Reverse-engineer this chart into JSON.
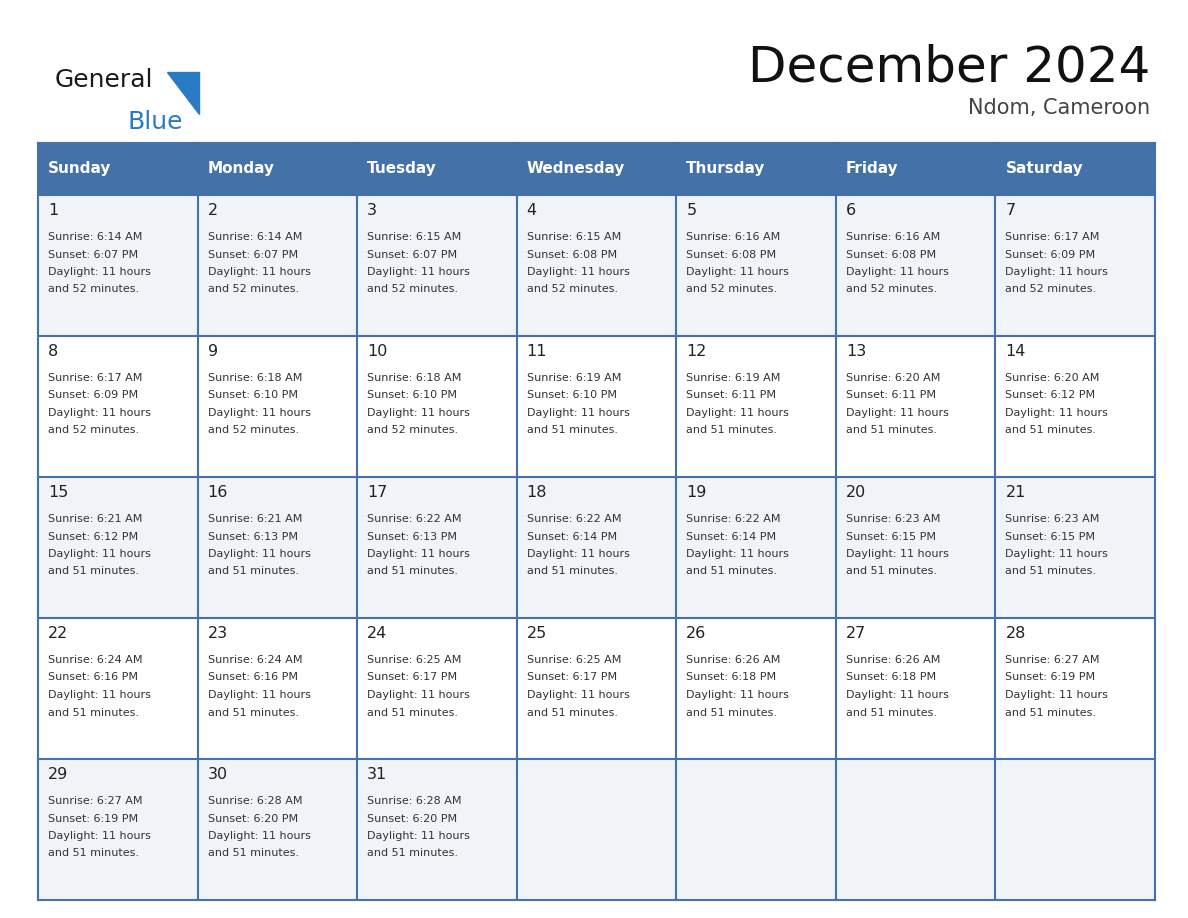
{
  "title": "December 2024",
  "subtitle": "Ndom, Cameroon",
  "header_color": "#4472a8",
  "header_text_color": "#ffffff",
  "border_color": "#4472a8",
  "day_names": [
    "Sunday",
    "Monday",
    "Tuesday",
    "Wednesday",
    "Thursday",
    "Friday",
    "Saturday"
  ],
  "days": [
    {
      "day": 1,
      "col": 0,
      "row": 0,
      "sunrise": "6:14 AM",
      "sunset": "6:07 PM",
      "daylight": "11 hours",
      "daylight2": "and 52 minutes."
    },
    {
      "day": 2,
      "col": 1,
      "row": 0,
      "sunrise": "6:14 AM",
      "sunset": "6:07 PM",
      "daylight": "11 hours",
      "daylight2": "and 52 minutes."
    },
    {
      "day": 3,
      "col": 2,
      "row": 0,
      "sunrise": "6:15 AM",
      "sunset": "6:07 PM",
      "daylight": "11 hours",
      "daylight2": "and 52 minutes."
    },
    {
      "day": 4,
      "col": 3,
      "row": 0,
      "sunrise": "6:15 AM",
      "sunset": "6:08 PM",
      "daylight": "11 hours",
      "daylight2": "and 52 minutes."
    },
    {
      "day": 5,
      "col": 4,
      "row": 0,
      "sunrise": "6:16 AM",
      "sunset": "6:08 PM",
      "daylight": "11 hours",
      "daylight2": "and 52 minutes."
    },
    {
      "day": 6,
      "col": 5,
      "row": 0,
      "sunrise": "6:16 AM",
      "sunset": "6:08 PM",
      "daylight": "11 hours",
      "daylight2": "and 52 minutes."
    },
    {
      "day": 7,
      "col": 6,
      "row": 0,
      "sunrise": "6:17 AM",
      "sunset": "6:09 PM",
      "daylight": "11 hours",
      "daylight2": "and 52 minutes."
    },
    {
      "day": 8,
      "col": 0,
      "row": 1,
      "sunrise": "6:17 AM",
      "sunset": "6:09 PM",
      "daylight": "11 hours",
      "daylight2": "and 52 minutes."
    },
    {
      "day": 9,
      "col": 1,
      "row": 1,
      "sunrise": "6:18 AM",
      "sunset": "6:10 PM",
      "daylight": "11 hours",
      "daylight2": "and 52 minutes."
    },
    {
      "day": 10,
      "col": 2,
      "row": 1,
      "sunrise": "6:18 AM",
      "sunset": "6:10 PM",
      "daylight": "11 hours",
      "daylight2": "and 52 minutes."
    },
    {
      "day": 11,
      "col": 3,
      "row": 1,
      "sunrise": "6:19 AM",
      "sunset": "6:10 PM",
      "daylight": "11 hours",
      "daylight2": "and 51 minutes."
    },
    {
      "day": 12,
      "col": 4,
      "row": 1,
      "sunrise": "6:19 AM",
      "sunset": "6:11 PM",
      "daylight": "11 hours",
      "daylight2": "and 51 minutes."
    },
    {
      "day": 13,
      "col": 5,
      "row": 1,
      "sunrise": "6:20 AM",
      "sunset": "6:11 PM",
      "daylight": "11 hours",
      "daylight2": "and 51 minutes."
    },
    {
      "day": 14,
      "col": 6,
      "row": 1,
      "sunrise": "6:20 AM",
      "sunset": "6:12 PM",
      "daylight": "11 hours",
      "daylight2": "and 51 minutes."
    },
    {
      "day": 15,
      "col": 0,
      "row": 2,
      "sunrise": "6:21 AM",
      "sunset": "6:12 PM",
      "daylight": "11 hours",
      "daylight2": "and 51 minutes."
    },
    {
      "day": 16,
      "col": 1,
      "row": 2,
      "sunrise": "6:21 AM",
      "sunset": "6:13 PM",
      "daylight": "11 hours",
      "daylight2": "and 51 minutes."
    },
    {
      "day": 17,
      "col": 2,
      "row": 2,
      "sunrise": "6:22 AM",
      "sunset": "6:13 PM",
      "daylight": "11 hours",
      "daylight2": "and 51 minutes."
    },
    {
      "day": 18,
      "col": 3,
      "row": 2,
      "sunrise": "6:22 AM",
      "sunset": "6:14 PM",
      "daylight": "11 hours",
      "daylight2": "and 51 minutes."
    },
    {
      "day": 19,
      "col": 4,
      "row": 2,
      "sunrise": "6:22 AM",
      "sunset": "6:14 PM",
      "daylight": "11 hours",
      "daylight2": "and 51 minutes."
    },
    {
      "day": 20,
      "col": 5,
      "row": 2,
      "sunrise": "6:23 AM",
      "sunset": "6:15 PM",
      "daylight": "11 hours",
      "daylight2": "and 51 minutes."
    },
    {
      "day": 21,
      "col": 6,
      "row": 2,
      "sunrise": "6:23 AM",
      "sunset": "6:15 PM",
      "daylight": "11 hours",
      "daylight2": "and 51 minutes."
    },
    {
      "day": 22,
      "col": 0,
      "row": 3,
      "sunrise": "6:24 AM",
      "sunset": "6:16 PM",
      "daylight": "11 hours",
      "daylight2": "and 51 minutes."
    },
    {
      "day": 23,
      "col": 1,
      "row": 3,
      "sunrise": "6:24 AM",
      "sunset": "6:16 PM",
      "daylight": "11 hours",
      "daylight2": "and 51 minutes."
    },
    {
      "day": 24,
      "col": 2,
      "row": 3,
      "sunrise": "6:25 AM",
      "sunset": "6:17 PM",
      "daylight": "11 hours",
      "daylight2": "and 51 minutes."
    },
    {
      "day": 25,
      "col": 3,
      "row": 3,
      "sunrise": "6:25 AM",
      "sunset": "6:17 PM",
      "daylight": "11 hours",
      "daylight2": "and 51 minutes."
    },
    {
      "day": 26,
      "col": 4,
      "row": 3,
      "sunrise": "6:26 AM",
      "sunset": "6:18 PM",
      "daylight": "11 hours",
      "daylight2": "and 51 minutes."
    },
    {
      "day": 27,
      "col": 5,
      "row": 3,
      "sunrise": "6:26 AM",
      "sunset": "6:18 PM",
      "daylight": "11 hours",
      "daylight2": "and 51 minutes."
    },
    {
      "day": 28,
      "col": 6,
      "row": 3,
      "sunrise": "6:27 AM",
      "sunset": "6:19 PM",
      "daylight": "11 hours",
      "daylight2": "and 51 minutes."
    },
    {
      "day": 29,
      "col": 0,
      "row": 4,
      "sunrise": "6:27 AM",
      "sunset": "6:19 PM",
      "daylight": "11 hours",
      "daylight2": "and 51 minutes."
    },
    {
      "day": 30,
      "col": 1,
      "row": 4,
      "sunrise": "6:28 AM",
      "sunset": "6:20 PM",
      "daylight": "11 hours",
      "daylight2": "and 51 minutes."
    },
    {
      "day": 31,
      "col": 2,
      "row": 4,
      "sunrise": "6:28 AM",
      "sunset": "6:20 PM",
      "daylight": "11 hours",
      "daylight2": "and 51 minutes."
    }
  ],
  "logo_text1": "General",
  "logo_text2": "Blue",
  "logo_color1": "#1a1a1a",
  "logo_color2": "#2a7bc4",
  "logo_triangle_color": "#2a7bc4",
  "title_color": "#111111",
  "subtitle_color": "#444444",
  "day_num_color": "#222222",
  "cell_text_color": "#333333",
  "row_bg_colors": [
    "#f0f4f9",
    "#ffffff",
    "#f0f4f9",
    "#ffffff",
    "#f0f4f9"
  ]
}
